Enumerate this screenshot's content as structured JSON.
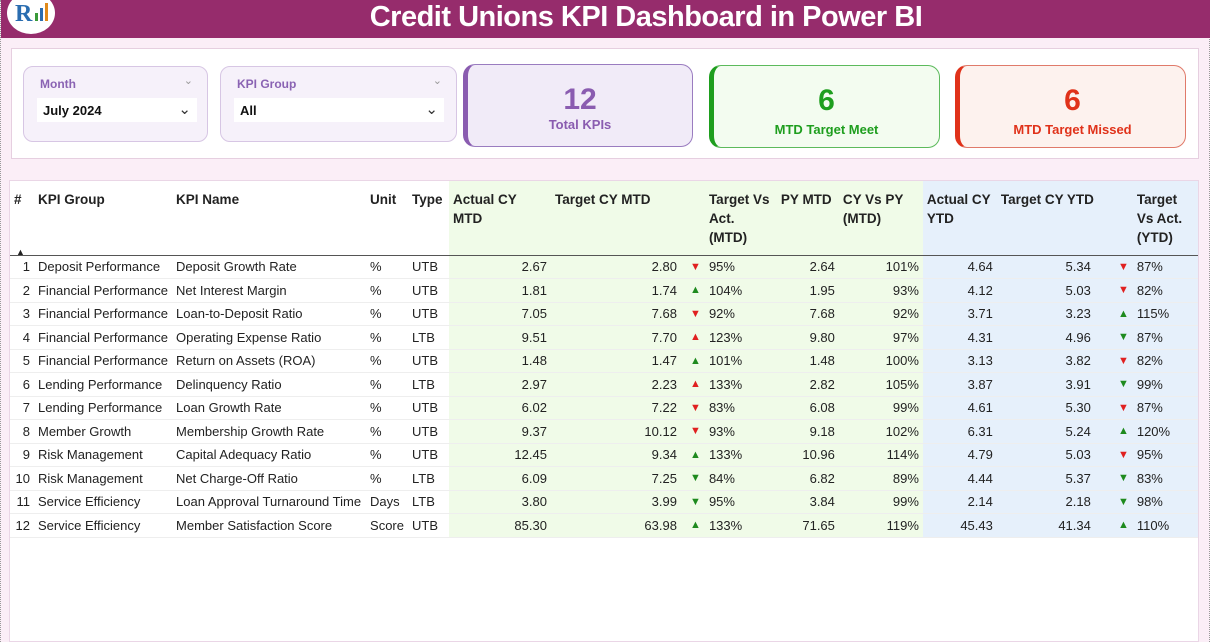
{
  "header": {
    "title": "Credit Unions KPI Dashboard in Power BI"
  },
  "colors": {
    "header": "#962c6c",
    "met": "#1e9e1e",
    "missed": "#e0321a",
    "total": "#8a5cb0"
  },
  "filters": {
    "month": {
      "label": "Month",
      "value": "July 2024"
    },
    "kpi_group": {
      "label": "KPI Group",
      "value": "All"
    }
  },
  "cards": {
    "total": {
      "value": "12",
      "label": "Total KPIs"
    },
    "met": {
      "value": "6",
      "label": "MTD Target Meet"
    },
    "missed": {
      "value": "6",
      "label": "MTD Target Missed"
    }
  },
  "table": {
    "headers": [
      "#",
      "KPI Group",
      "KPI Name",
      "Unit",
      "Type",
      "Actual CY MTD",
      "Target CY MTD",
      "Target Vs Act. (MTD)",
      "PY MTD",
      "CY Vs PY (MTD)",
      "Actual CY YTD",
      "Target CY YTD",
      "Target Vs Act. (YTD)"
    ],
    "sort_indicator": "ascending",
    "rows": [
      [
        "1",
        "Deposit Performance",
        "Deposit Growth Rate",
        "%",
        "UTB",
        "2.67",
        "2.80",
        "down-red",
        "95%",
        "2.64",
        "101%",
        "4.64",
        "5.34",
        "down-red",
        "87%"
      ],
      [
        "2",
        "Financial Performance",
        "Net Interest Margin",
        "%",
        "UTB",
        "1.81",
        "1.74",
        "up-green",
        "104%",
        "1.95",
        "93%",
        "4.12",
        "5.03",
        "down-red",
        "82%"
      ],
      [
        "3",
        "Financial Performance",
        "Loan-to-Deposit Ratio",
        "%",
        "UTB",
        "7.05",
        "7.68",
        "down-red",
        "92%",
        "7.68",
        "92%",
        "3.71",
        "3.23",
        "up-green",
        "115%"
      ],
      [
        "4",
        "Financial Performance",
        "Operating Expense Ratio",
        "%",
        "LTB",
        "9.51",
        "7.70",
        "up-red",
        "123%",
        "9.80",
        "97%",
        "4.31",
        "4.96",
        "down-green",
        "87%"
      ],
      [
        "5",
        "Financial Performance",
        "Return on Assets (ROA)",
        "%",
        "UTB",
        "1.48",
        "1.47",
        "up-green",
        "101%",
        "1.48",
        "100%",
        "3.13",
        "3.82",
        "down-red",
        "82%"
      ],
      [
        "6",
        "Lending Performance",
        "Delinquency Ratio",
        "%",
        "LTB",
        "2.97",
        "2.23",
        "up-red",
        "133%",
        "2.82",
        "105%",
        "3.87",
        "3.91",
        "down-green",
        "99%"
      ],
      [
        "7",
        "Lending Performance",
        "Loan Growth Rate",
        "%",
        "UTB",
        "6.02",
        "7.22",
        "down-red",
        "83%",
        "6.08",
        "99%",
        "4.61",
        "5.30",
        "down-red",
        "87%"
      ],
      [
        "8",
        "Member Growth",
        "Membership Growth Rate",
        "%",
        "UTB",
        "9.37",
        "10.12",
        "down-red",
        "93%",
        "9.18",
        "102%",
        "6.31",
        "5.24",
        "up-green",
        "120%"
      ],
      [
        "9",
        "Risk Management",
        "Capital Adequacy Ratio",
        "%",
        "UTB",
        "12.45",
        "9.34",
        "up-green",
        "133%",
        "10.96",
        "114%",
        "4.79",
        "5.03",
        "down-red",
        "95%"
      ],
      [
        "10",
        "Risk Management",
        "Net Charge-Off Ratio",
        "%",
        "LTB",
        "6.09",
        "7.25",
        "down-green",
        "84%",
        "6.82",
        "89%",
        "4.44",
        "5.37",
        "down-green",
        "83%"
      ],
      [
        "11",
        "Service Efficiency",
        "Loan Approval Turnaround Time",
        "Days",
        "LTB",
        "3.80",
        "3.99",
        "down-green",
        "95%",
        "3.84",
        "99%",
        "2.14",
        "2.18",
        "down-green",
        "98%"
      ],
      [
        "12",
        "Service Efficiency",
        "Member Satisfaction Score",
        "Score",
        "UTB",
        "85.30",
        "63.98",
        "up-green",
        "133%",
        "71.65",
        "119%",
        "45.43",
        "41.34",
        "up-green",
        "110%"
      ]
    ]
  }
}
